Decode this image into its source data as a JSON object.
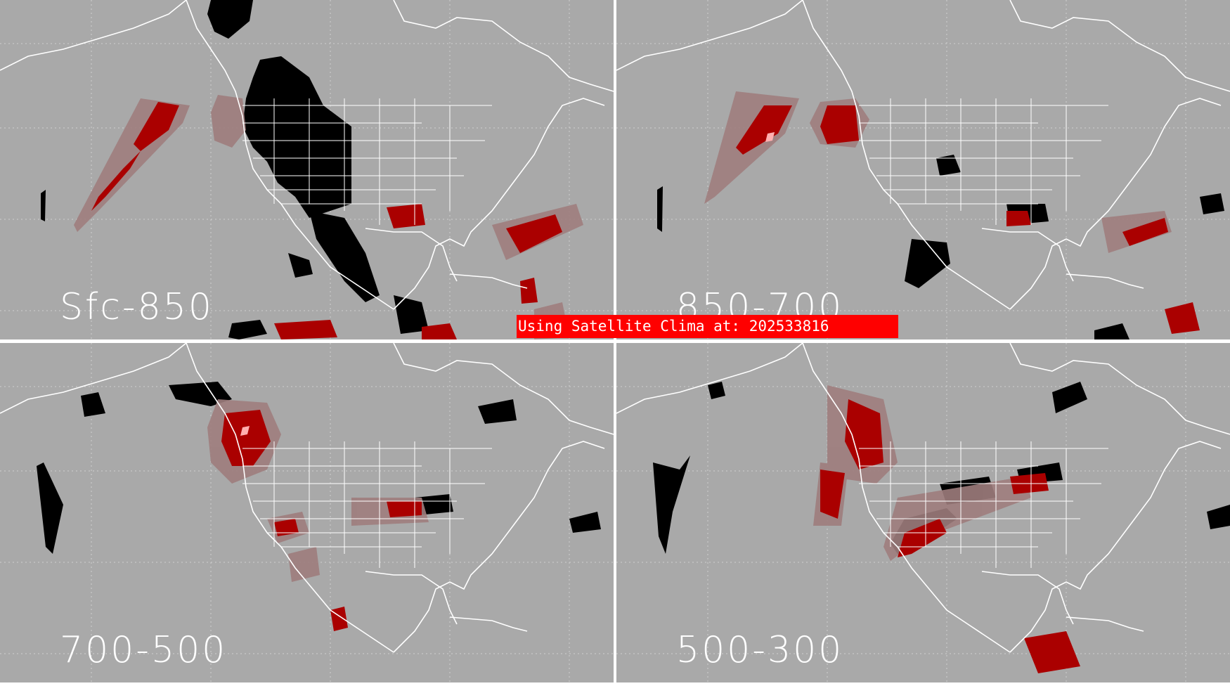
{
  "panels": [
    {
      "label": "Sfc-850"
    },
    {
      "label": "850-700"
    },
    {
      "label": "700-500"
    },
    {
      "label": "500-300"
    }
  ],
  "banner": {
    "text": "Using Satellite Clima at: 202533816"
  },
  "colors": {
    "background": "#a9a9a9",
    "map_lines": "#ffffff",
    "black_region": "#000000",
    "dark_red": "#990000",
    "red": "#cc0000",
    "rose": "#9e7d7d",
    "pink": "#ffb0b0",
    "banner_bg": "#ff0000"
  },
  "icons": [
    "coastline-outline",
    "state-borders",
    "lat-lon-grid"
  ]
}
